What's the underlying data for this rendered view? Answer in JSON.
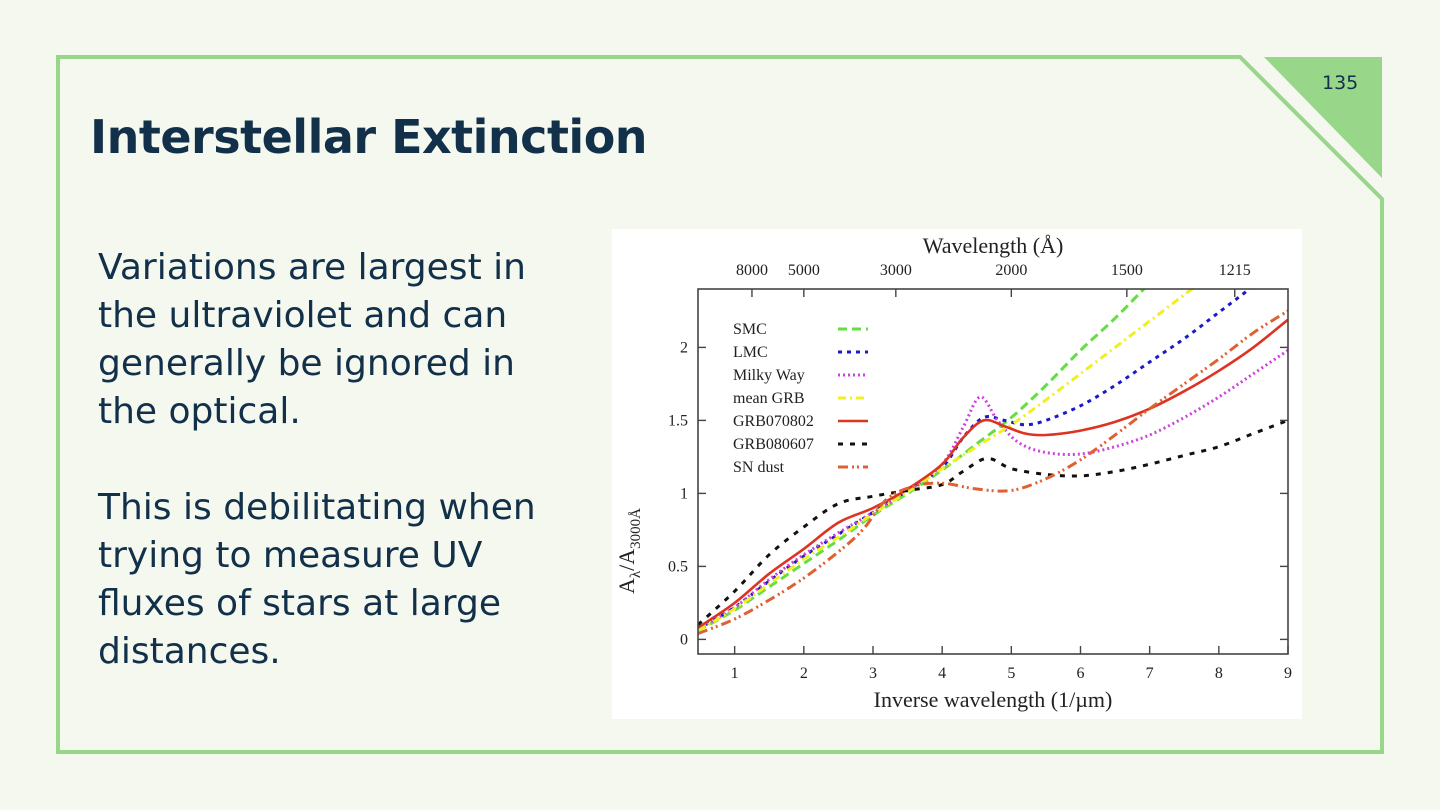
{
  "slide": {
    "title": "Interstellar Extinction",
    "page_number": "135",
    "paragraphs": [
      "Variations are largest in the ultraviolet and can generally be ignored in the optical.",
      "This is debilitating when trying to measure UV fluxes of stars at large distances."
    ],
    "colors": {
      "background": "#f4f8ee",
      "accent_green": "#98d78a",
      "text_dark": "#12304a"
    }
  },
  "chart_data": {
    "type": "line",
    "title": "",
    "xlabel": "Inverse wavelength (1/µm)",
    "ylabel": "Aλ/A3000Å",
    "ylabel_main": "A",
    "ylabel_sub1": "λ",
    "ylabel_mid": "/A",
    "ylabel_sub2": "3000Å",
    "top_xlabel": "Wavelength (Å)",
    "xlim": [
      0.47,
      9
    ],
    "ylim": [
      -0.1,
      2.4
    ],
    "xticks": [
      1,
      2,
      3,
      4,
      5,
      6,
      7,
      8,
      9
    ],
    "xtick_labels": [
      "1",
      "2",
      "3",
      "4",
      "5",
      "6",
      "7",
      "8",
      "9"
    ],
    "yticks": [
      0,
      0.5,
      1,
      1.5,
      2
    ],
    "ytick_labels": [
      "0",
      "0.5",
      "1",
      "1.5",
      "2"
    ],
    "top_ticks": [
      {
        "label": "8000",
        "x": 1.25
      },
      {
        "label": "5000",
        "x": 2.0
      },
      {
        "label": "3000",
        "x": 3.33
      },
      {
        "label": "2000",
        "x": 5.0
      },
      {
        "label": "1500",
        "x": 6.67
      },
      {
        "label": "1215",
        "x": 8.23
      }
    ],
    "legend_position": "top-left",
    "grid": false,
    "series": [
      {
        "name": "SMC",
        "color": "#66dd44",
        "dash": "dashed",
        "x": [
          0.47,
          1.0,
          1.5,
          2.0,
          2.5,
          3.0,
          3.5,
          4.0,
          4.5,
          5.0,
          5.5,
          6.0,
          6.5,
          7.0,
          7.2
        ],
        "y": [
          0.06,
          0.2,
          0.36,
          0.52,
          0.68,
          0.85,
          1.0,
          1.16,
          1.34,
          1.52,
          1.74,
          1.98,
          2.2,
          2.44,
          2.52
        ]
      },
      {
        "name": "LMC",
        "color": "#1a1acc",
        "dash": "dotted-dash",
        "x": [
          0.47,
          1.0,
          1.5,
          2.0,
          2.5,
          3.0,
          3.5,
          4.0,
          4.3,
          4.6,
          4.9,
          5.2,
          5.5,
          6.0,
          6.5,
          7.0,
          7.5,
          8.0,
          8.5
        ],
        "y": [
          0.07,
          0.22,
          0.4,
          0.57,
          0.72,
          0.87,
          1.02,
          1.18,
          1.38,
          1.52,
          1.5,
          1.47,
          1.5,
          1.6,
          1.74,
          1.9,
          2.06,
          2.24,
          2.42
        ]
      },
      {
        "name": "Milky Way",
        "color": "#cc44dd",
        "dash": "dotted",
        "x": [
          0.47,
          1.0,
          1.5,
          2.0,
          2.5,
          3.0,
          3.5,
          4.0,
          4.3,
          4.55,
          4.8,
          5.1,
          5.5,
          6.0,
          6.5,
          7.0,
          7.5,
          8.0,
          8.5,
          9.0
        ],
        "y": [
          0.07,
          0.22,
          0.41,
          0.58,
          0.73,
          0.87,
          1.02,
          1.2,
          1.45,
          1.66,
          1.5,
          1.35,
          1.28,
          1.27,
          1.32,
          1.4,
          1.52,
          1.66,
          1.82,
          1.98
        ]
      },
      {
        "name": "mean GRB",
        "color": "#f0f020",
        "dash": "dash-dot",
        "x": [
          0.47,
          1.0,
          1.5,
          2.0,
          2.5,
          3.0,
          3.5,
          4.0,
          4.5,
          5.0,
          5.5,
          6.0,
          6.5,
          7.0,
          7.5,
          7.9
        ],
        "y": [
          0.06,
          0.21,
          0.38,
          0.55,
          0.7,
          0.86,
          1.01,
          1.17,
          1.32,
          1.47,
          1.64,
          1.82,
          2.0,
          2.18,
          2.36,
          2.5
        ]
      },
      {
        "name": "GRB070802",
        "color": "#dd3322",
        "dash": "solid",
        "x": [
          0.47,
          1.0,
          1.5,
          2.0,
          2.5,
          3.0,
          3.5,
          4.0,
          4.3,
          4.6,
          4.9,
          5.2,
          5.5,
          6.0,
          6.5,
          7.0,
          7.5,
          8.0,
          8.5,
          9.0
        ],
        "y": [
          0.08,
          0.25,
          0.45,
          0.62,
          0.8,
          0.9,
          1.03,
          1.2,
          1.38,
          1.5,
          1.46,
          1.41,
          1.4,
          1.43,
          1.49,
          1.58,
          1.7,
          1.84,
          2.0,
          2.19
        ]
      },
      {
        "name": "GRB080607",
        "color": "#111111",
        "dash": "dashed-sparse",
        "x": [
          0.47,
          1.0,
          1.5,
          2.0,
          2.5,
          3.0,
          3.5,
          4.0,
          4.3,
          4.65,
          5.0,
          5.5,
          6.0,
          6.5,
          7.0,
          7.5,
          8.0,
          8.5,
          9.0
        ],
        "y": [
          0.1,
          0.33,
          0.58,
          0.77,
          0.93,
          0.98,
          1.02,
          1.06,
          1.15,
          1.24,
          1.17,
          1.13,
          1.12,
          1.15,
          1.2,
          1.26,
          1.32,
          1.41,
          1.5
        ]
      },
      {
        "name": "SN dust",
        "color": "#e06030",
        "dash": "dash-dot-dot",
        "x": [
          0.47,
          1.0,
          1.5,
          2.0,
          2.5,
          2.85,
          3.2,
          3.6,
          4.0,
          4.5,
          5.0,
          5.5,
          6.0,
          6.5,
          7.0,
          7.5,
          8.0,
          8.5,
          9.0
        ],
        "y": [
          0.04,
          0.14,
          0.27,
          0.42,
          0.6,
          0.75,
          0.96,
          1.05,
          1.07,
          1.03,
          1.02,
          1.1,
          1.23,
          1.4,
          1.58,
          1.75,
          1.92,
          2.1,
          2.25
        ]
      }
    ]
  }
}
